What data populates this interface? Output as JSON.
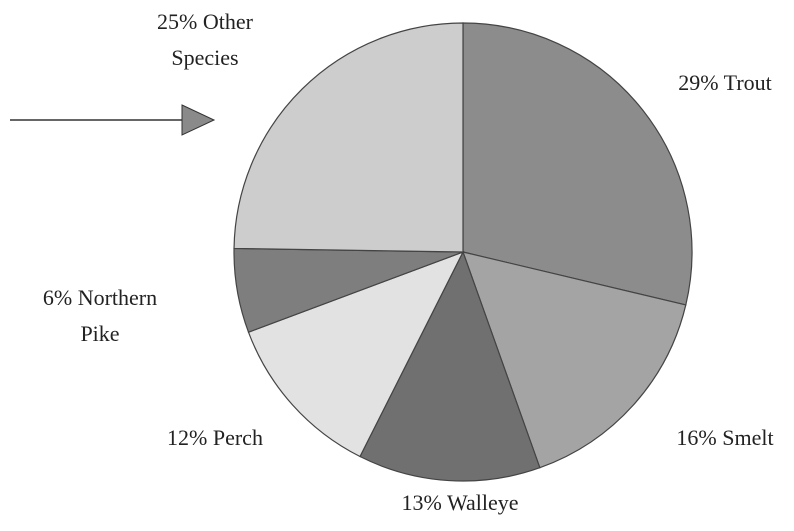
{
  "chart_data": {
    "type": "pie",
    "categories": [
      "Trout",
      "Smelt",
      "Walleye",
      "Perch",
      "Northern Pike",
      "Other Species"
    ],
    "values": [
      29,
      16,
      13,
      12,
      6,
      25
    ],
    "value_labels": [
      "29%",
      "16%",
      "13%",
      "12%",
      "6%",
      "25%"
    ],
    "colors": [
      "#8c8c8c",
      "#a4a4a4",
      "#707070",
      "#e2e2e2",
      "#7e7e7e",
      "#cdcdcd"
    ]
  }
}
